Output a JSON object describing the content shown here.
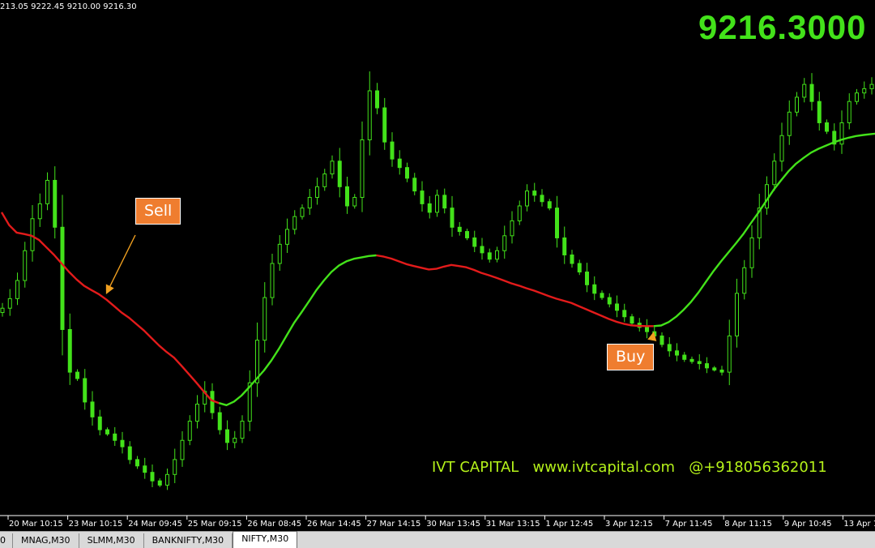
{
  "header": {
    "ohlc_text": "213.05 9222.45 9210.00 9216.30",
    "current_price": "9216.3000"
  },
  "annotations": {
    "sell": "Sell",
    "buy": "Buy",
    "watermark": "IVT CAPITAL   www.ivtcapital.com   @+918056362011"
  },
  "tabs": [
    {
      "label": "0",
      "active": false
    },
    {
      "label": "MNAG,M30",
      "active": false
    },
    {
      "label": "SLMM,M30",
      "active": false
    },
    {
      "label": "BANKNIFTY,M30",
      "active": false
    },
    {
      "label": "NIFTY,M30",
      "active": true
    }
  ],
  "colors": {
    "background": "#000000",
    "candle": "#43e21a",
    "ma_up": "#43e21a",
    "ma_down": "#e31b1b",
    "arrow": "#f0a020",
    "label_bg": "#ef7d2f"
  },
  "chart_data": {
    "type": "line",
    "symbol": "NIFTY,M30",
    "x_tick_labels": [
      "20 Mar 10:15",
      "23 Mar 10:15",
      "24 Mar 09:45",
      "25 Mar 09:15",
      "26 Mar 08:45",
      "26 Mar 14:45",
      "27 Mar 14:15",
      "30 Mar 13:45",
      "31 Mar 13:15",
      "1 Apr 12:45",
      "3 Apr 12:15",
      "7 Apr 11:45",
      "8 Apr 11:15",
      "9 Apr 10:45",
      "13 Apr 1"
    ],
    "ylim": [
      7480,
      9800
    ],
    "grid": false,
    "price_series": {
      "name": "close",
      "values": [
        8430,
        8475,
        8560,
        8700,
        8850,
        8920,
        9030,
        8810,
        8330,
        8130,
        8100,
        7990,
        7920,
        7860,
        7840,
        7810,
        7780,
        7720,
        7690,
        7660,
        7620,
        7600,
        7650,
        7720,
        7810,
        7900,
        7980,
        8040,
        7940,
        7860,
        7800,
        7820,
        7900,
        8080,
        8280,
        8480,
        8640,
        8730,
        8800,
        8860,
        8900,
        8950,
        9000,
        9060,
        9120,
        9000,
        8910,
        8950,
        9220,
        9450,
        9370,
        9210,
        9130,
        9090,
        9040,
        8980,
        8920,
        8880,
        8960,
        8900,
        8810,
        8790,
        8760,
        8720,
        8690,
        8660,
        8700,
        8770,
        8840,
        8910,
        8980,
        8960,
        8930,
        8900,
        8760,
        8680,
        8640,
        8600,
        8540,
        8500,
        8480,
        8450,
        8420,
        8390,
        8360,
        8340,
        8320,
        8300,
        8260,
        8230,
        8210,
        8190,
        8180,
        8170,
        8150,
        8140,
        8130,
        8300,
        8500,
        8620,
        8760,
        8900,
        9010,
        9120,
        9240,
        9350,
        9420,
        9480,
        9400,
        9300,
        9260,
        9200,
        9300,
        9400,
        9440,
        9460,
        9480,
        9500,
        9430,
        9380,
        9410,
        9390,
        9360,
        9330,
        9290,
        9216
      ]
    },
    "moving_average": {
      "name": "MA",
      "values": [
        8880,
        8820,
        8785,
        8778,
        8770,
        8750,
        8715,
        8680,
        8640,
        8600,
        8565,
        8535,
        8515,
        8495,
        8470,
        8440,
        8410,
        8385,
        8355,
        8325,
        8290,
        8255,
        8225,
        8198,
        8160,
        8120,
        8080,
        8038,
        7998,
        7985,
        7975,
        7992,
        8020,
        8058,
        8098,
        8138,
        8185,
        8240,
        8300,
        8360,
        8410,
        8462,
        8515,
        8560,
        8600,
        8630,
        8650,
        8662,
        8668,
        8675,
        8678,
        8672,
        8663,
        8650,
        8637,
        8628,
        8620,
        8612,
        8615,
        8625,
        8633,
        8628,
        8622,
        8610,
        8596,
        8585,
        8573,
        8560,
        8547,
        8536,
        8524,
        8513,
        8500,
        8487,
        8475,
        8465,
        8455,
        8440,
        8425,
        8410,
        8395,
        8380,
        8367,
        8357,
        8350,
        8347,
        8346,
        8346,
        8349,
        8365,
        8390,
        8423,
        8460,
        8505,
        8555,
        8605,
        8650,
        8693,
        8735,
        8780,
        8830,
        8880,
        8932,
        8985,
        9030,
        9073,
        9108,
        9135,
        9160,
        9178,
        9193,
        9208,
        9220,
        9230,
        9238,
        9243,
        9247,
        9250
      ]
    },
    "ma_trend_segments": [
      {
        "trend": "down",
        "from_index": 0,
        "to_index": 29
      },
      {
        "trend": "up",
        "from_index": 29,
        "to_index": 50
      },
      {
        "trend": "down",
        "from_index": 50,
        "to_index": 87
      },
      {
        "trend": "up",
        "from_index": 87,
        "to_index": 117
      }
    ],
    "signals": [
      {
        "label": "Sell",
        "index": 14
      },
      {
        "label": "Buy",
        "index": 87
      }
    ]
  }
}
